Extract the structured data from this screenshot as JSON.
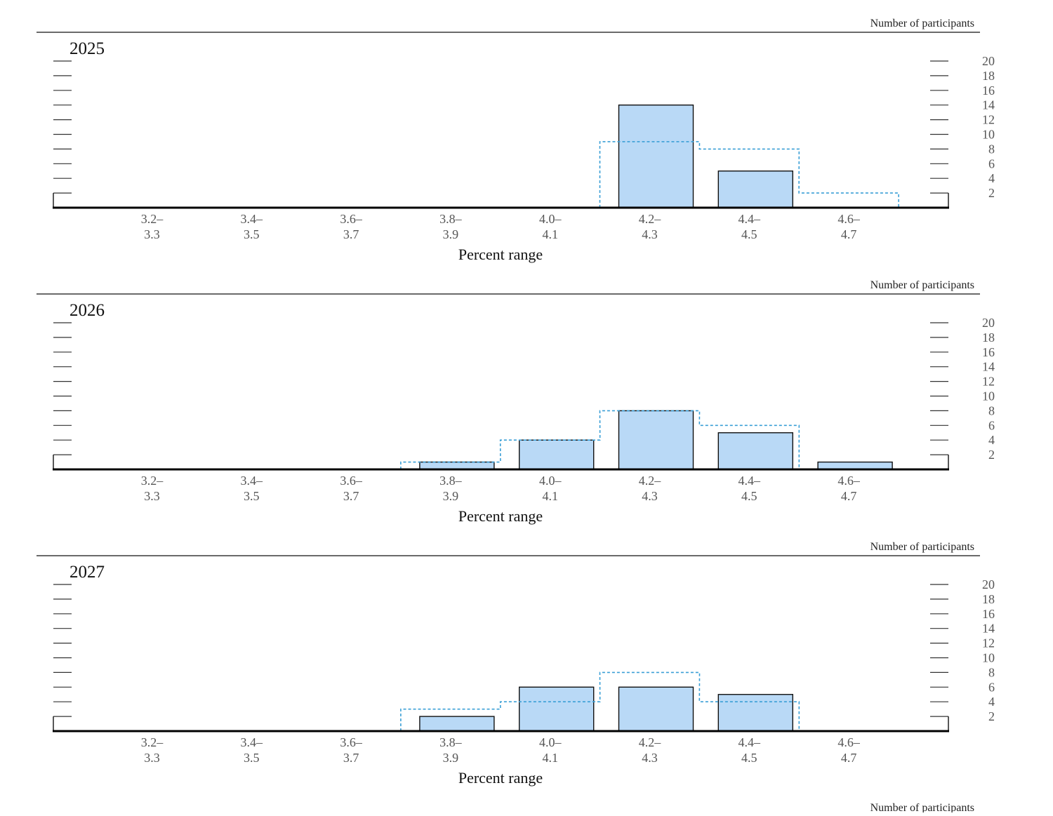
{
  "chart_data": [
    {
      "type": "bar",
      "title": "2025",
      "right_label": "Number of participants",
      "xlabel": "Percent range",
      "categories": [
        {
          "top": "3.2–",
          "bottom": "3.3"
        },
        {
          "top": "3.4–",
          "bottom": "3.5"
        },
        {
          "top": "3.6–",
          "bottom": "3.7"
        },
        {
          "top": "3.8–",
          "bottom": "3.9"
        },
        {
          "top": "4.0–",
          "bottom": "4.1"
        },
        {
          "top": "4.2–",
          "bottom": "4.3"
        },
        {
          "top": "4.4–",
          "bottom": "4.5"
        },
        {
          "top": "4.6–",
          "bottom": "4.7"
        }
      ],
      "values": [
        0,
        0,
        0,
        0,
        0,
        14,
        5,
        0
      ],
      "previous_values": [
        0,
        0,
        0,
        0,
        0,
        9,
        8,
        2
      ],
      "yticks": [
        2,
        4,
        6,
        8,
        10,
        12,
        14,
        16,
        18,
        20
      ],
      "ylim": [
        0,
        20
      ],
      "colors": {
        "bar_fill": "#b9d9f6",
        "bar_stroke": "#111111",
        "previous_line": "#3a9fd6"
      }
    },
    {
      "type": "bar",
      "title": "2026",
      "right_label": "Number of participants",
      "xlabel": "Percent range",
      "categories": [
        {
          "top": "3.2–",
          "bottom": "3.3"
        },
        {
          "top": "3.4–",
          "bottom": "3.5"
        },
        {
          "top": "3.6–",
          "bottom": "3.7"
        },
        {
          "top": "3.8–",
          "bottom": "3.9"
        },
        {
          "top": "4.0–",
          "bottom": "4.1"
        },
        {
          "top": "4.2–",
          "bottom": "4.3"
        },
        {
          "top": "4.4–",
          "bottom": "4.5"
        },
        {
          "top": "4.6–",
          "bottom": "4.7"
        }
      ],
      "values": [
        0,
        0,
        0,
        1,
        4,
        8,
        5,
        1
      ],
      "previous_values": [
        0,
        0,
        0,
        1,
        4,
        8,
        6,
        0
      ],
      "yticks": [
        2,
        4,
        6,
        8,
        10,
        12,
        14,
        16,
        18,
        20
      ],
      "ylim": [
        0,
        20
      ],
      "colors": {
        "bar_fill": "#b9d9f6",
        "bar_stroke": "#111111",
        "previous_line": "#3a9fd6"
      }
    },
    {
      "type": "bar",
      "title": "2027",
      "right_label": "Number of participants",
      "xlabel": "Percent range",
      "categories": [
        {
          "top": "3.2–",
          "bottom": "3.3"
        },
        {
          "top": "3.4–",
          "bottom": "3.5"
        },
        {
          "top": "3.6–",
          "bottom": "3.7"
        },
        {
          "top": "3.8–",
          "bottom": "3.9"
        },
        {
          "top": "4.0–",
          "bottom": "4.1"
        },
        {
          "top": "4.2–",
          "bottom": "4.3"
        },
        {
          "top": "4.4–",
          "bottom": "4.5"
        },
        {
          "top": "4.6–",
          "bottom": "4.7"
        }
      ],
      "values": [
        0,
        0,
        0,
        2,
        6,
        6,
        5,
        0
      ],
      "previous_values": [
        0,
        0,
        0,
        3,
        4,
        8,
        4,
        0
      ],
      "yticks": [
        2,
        4,
        6,
        8,
        10,
        12,
        14,
        16,
        18,
        20
      ],
      "ylim": [
        0,
        20
      ],
      "colors": {
        "bar_fill": "#b9d9f6",
        "bar_stroke": "#111111",
        "previous_line": "#3a9fd6"
      }
    }
  ],
  "footer": {
    "right_label": "Number of participants"
  }
}
